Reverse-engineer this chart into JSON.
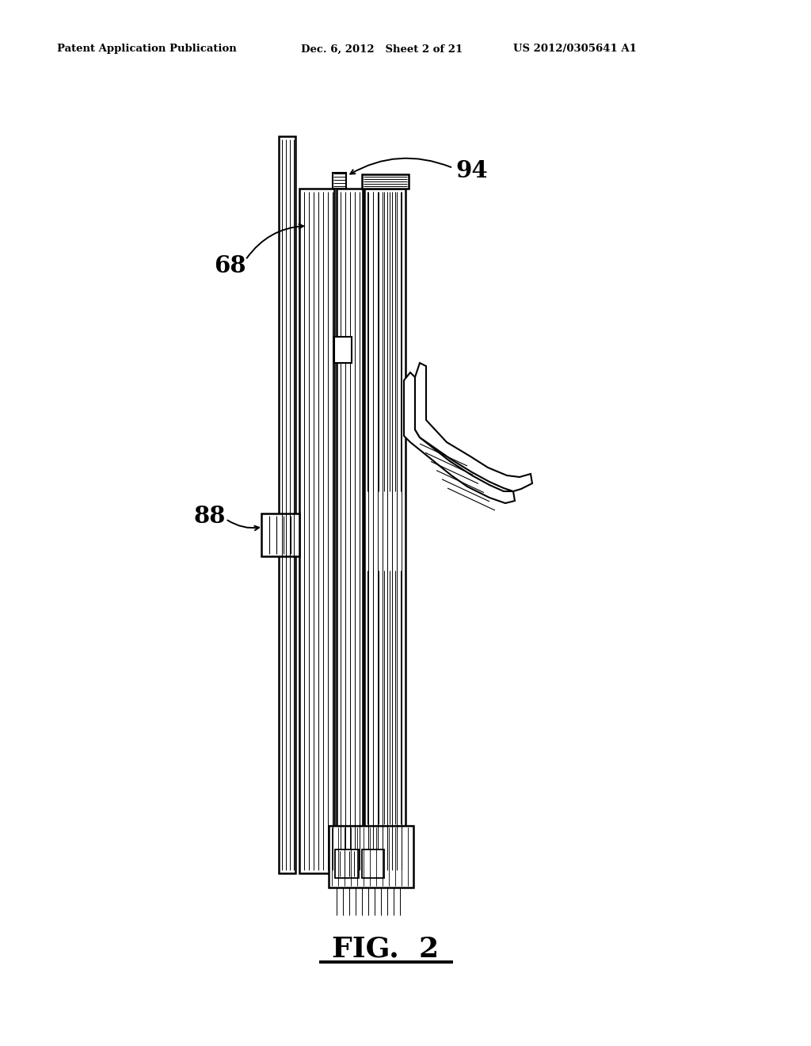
{
  "header_left": "Patent Application Publication",
  "header_mid": "Dec. 6, 2012   Sheet 2 of 21",
  "header_right": "US 2012/0305641 A1",
  "fig_label": "FIG.  2",
  "label_68": "68",
  "label_88": "88",
  "label_94": "94",
  "bg_color": "#ffffff",
  "line_color": "#000000"
}
